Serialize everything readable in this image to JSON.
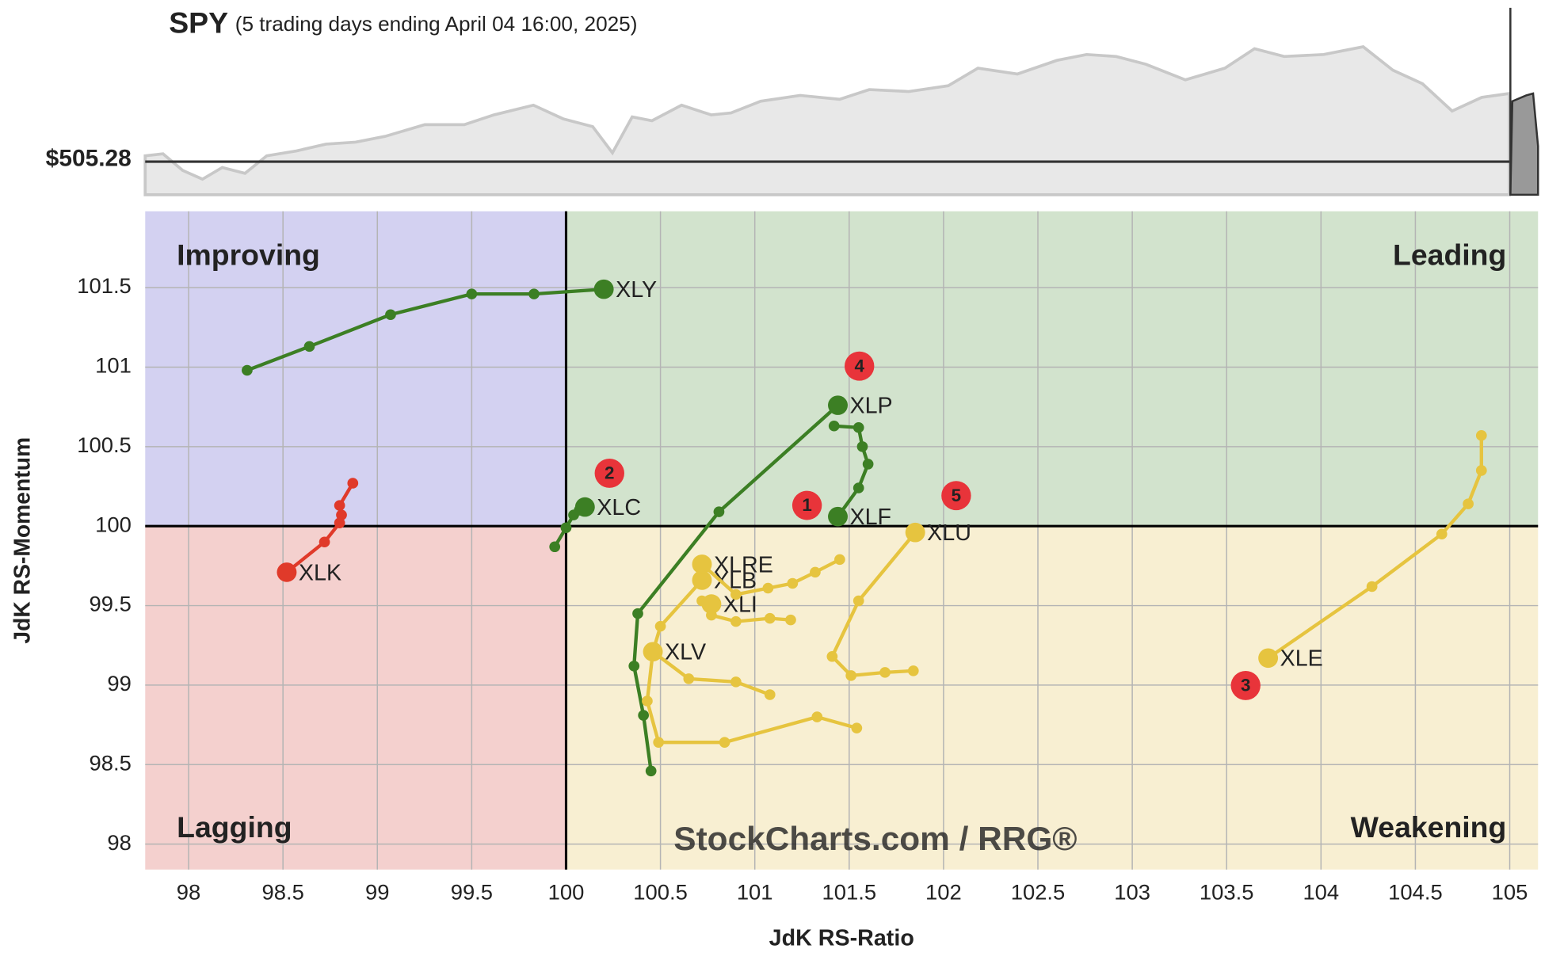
{
  "chart_data": {
    "type": "rrg",
    "title": "SPY",
    "subtitle": "(5 trading days ending April 04 16:00, 2025)",
    "price_label": "$505.28",
    "x_label": "JdK RS-Ratio",
    "y_label": "JdK RS-Momentum",
    "watermark": "StockCharts.com / RRG®",
    "quadrants": {
      "improving": {
        "label": "Improving",
        "color": "#d3d1f1"
      },
      "leading": {
        "label": "Leading",
        "color": "#d2e3cd"
      },
      "lagging": {
        "label": "Lagging",
        "color": "#f4d0ce"
      },
      "weakening": {
        "label": "Weakening",
        "color": "#f8efd2"
      }
    },
    "center": [
      100,
      100
    ],
    "annotations": [
      "1",
      "2",
      "3",
      "4",
      "5"
    ],
    "xlim": [
      97.77,
      105.15
    ],
    "ylim": [
      97.84,
      101.98
    ],
    "xticks": [
      98,
      98.5,
      99,
      99.5,
      100,
      100.5,
      101,
      101.5,
      102,
      102.5,
      103,
      103.5,
      104,
      104.5,
      105
    ],
    "yticks": [
      98,
      98.5,
      99,
      99.5,
      100,
      100.5,
      101,
      101.5
    ],
    "grid": true,
    "series": [
      {
        "name": "XLY",
        "color": "#3c7f24",
        "x": [
          98.31,
          98.64,
          99.07,
          99.5,
          99.83,
          100.2
        ],
        "values": [
          100.98,
          101.13,
          101.33,
          101.46,
          101.46,
          101.49
        ]
      },
      {
        "name": "XLK",
        "color": "#e03a2a",
        "x": [
          98.87,
          98.8,
          98.81,
          98.8,
          98.72,
          98.52
        ],
        "values": [
          100.27,
          100.13,
          100.07,
          100.02,
          99.9,
          99.71
        ]
      },
      {
        "name": "XLC",
        "color": "#3c7f24",
        "x": [
          99.94,
          100,
          100.04,
          100.07,
          100.1
        ],
        "values": [
          99.87,
          99.99,
          100.07,
          100.1,
          100.12
        ]
      },
      {
        "name": "XLP",
        "color": "#3c7f24",
        "x": [
          100.45,
          100.41,
          100.36,
          100.38,
          100.81,
          101.44
        ],
        "values": [
          98.46,
          98.81,
          99.12,
          99.45,
          100.09,
          100.76
        ]
      },
      {
        "name": "XLF",
        "color": "#3c7f24",
        "x": [
          101.42,
          101.55,
          101.57,
          101.6,
          101.55,
          101.44
        ],
        "values": [
          100.63,
          100.62,
          100.5,
          100.39,
          100.24,
          100.06
        ]
      },
      {
        "name": "XLE",
        "color": "#e6c43f",
        "x": [
          104.85,
          104.85,
          104.78,
          104.64,
          104.27,
          103.72
        ],
        "values": [
          100.57,
          100.35,
          100.14,
          99.95,
          99.62,
          99.17
        ]
      },
      {
        "name": "XLU",
        "color": "#e6c43f",
        "x": [
          101.84,
          101.69,
          101.51,
          101.41,
          101.55,
          101.85
        ],
        "values": [
          99.09,
          99.08,
          99.06,
          99.18,
          99.53,
          99.96
        ]
      },
      {
        "name": "XLV",
        "color": "#e6c43f",
        "x": [
          101.54,
          101.33,
          100.84,
          100.49,
          100.43,
          100.46
        ],
        "values": [
          98.73,
          98.8,
          98.64,
          98.64,
          98.9,
          99.21
        ]
      },
      {
        "name": "XLI",
        "color": "#e6c43f",
        "x": [
          101.19,
          101.08,
          100.9,
          100.77,
          100.72,
          100.77
        ],
        "values": [
          99.41,
          99.42,
          99.4,
          99.44,
          99.53,
          99.51
        ]
      },
      {
        "name": "XLB",
        "color": "#e6c43f",
        "x": [
          101.08,
          100.9,
          100.65,
          100.46,
          100.5,
          100.72
        ],
        "values": [
          98.94,
          99.02,
          99.04,
          99.21,
          99.37,
          99.66
        ]
      },
      {
        "name": "XLRE",
        "color": "#e6c43f",
        "x": [
          101.45,
          101.32,
          101.2,
          101.07,
          100.9,
          100.72
        ],
        "values": [
          99.79,
          99.71,
          99.64,
          99.61,
          99.57,
          99.76
        ]
      }
    ]
  }
}
